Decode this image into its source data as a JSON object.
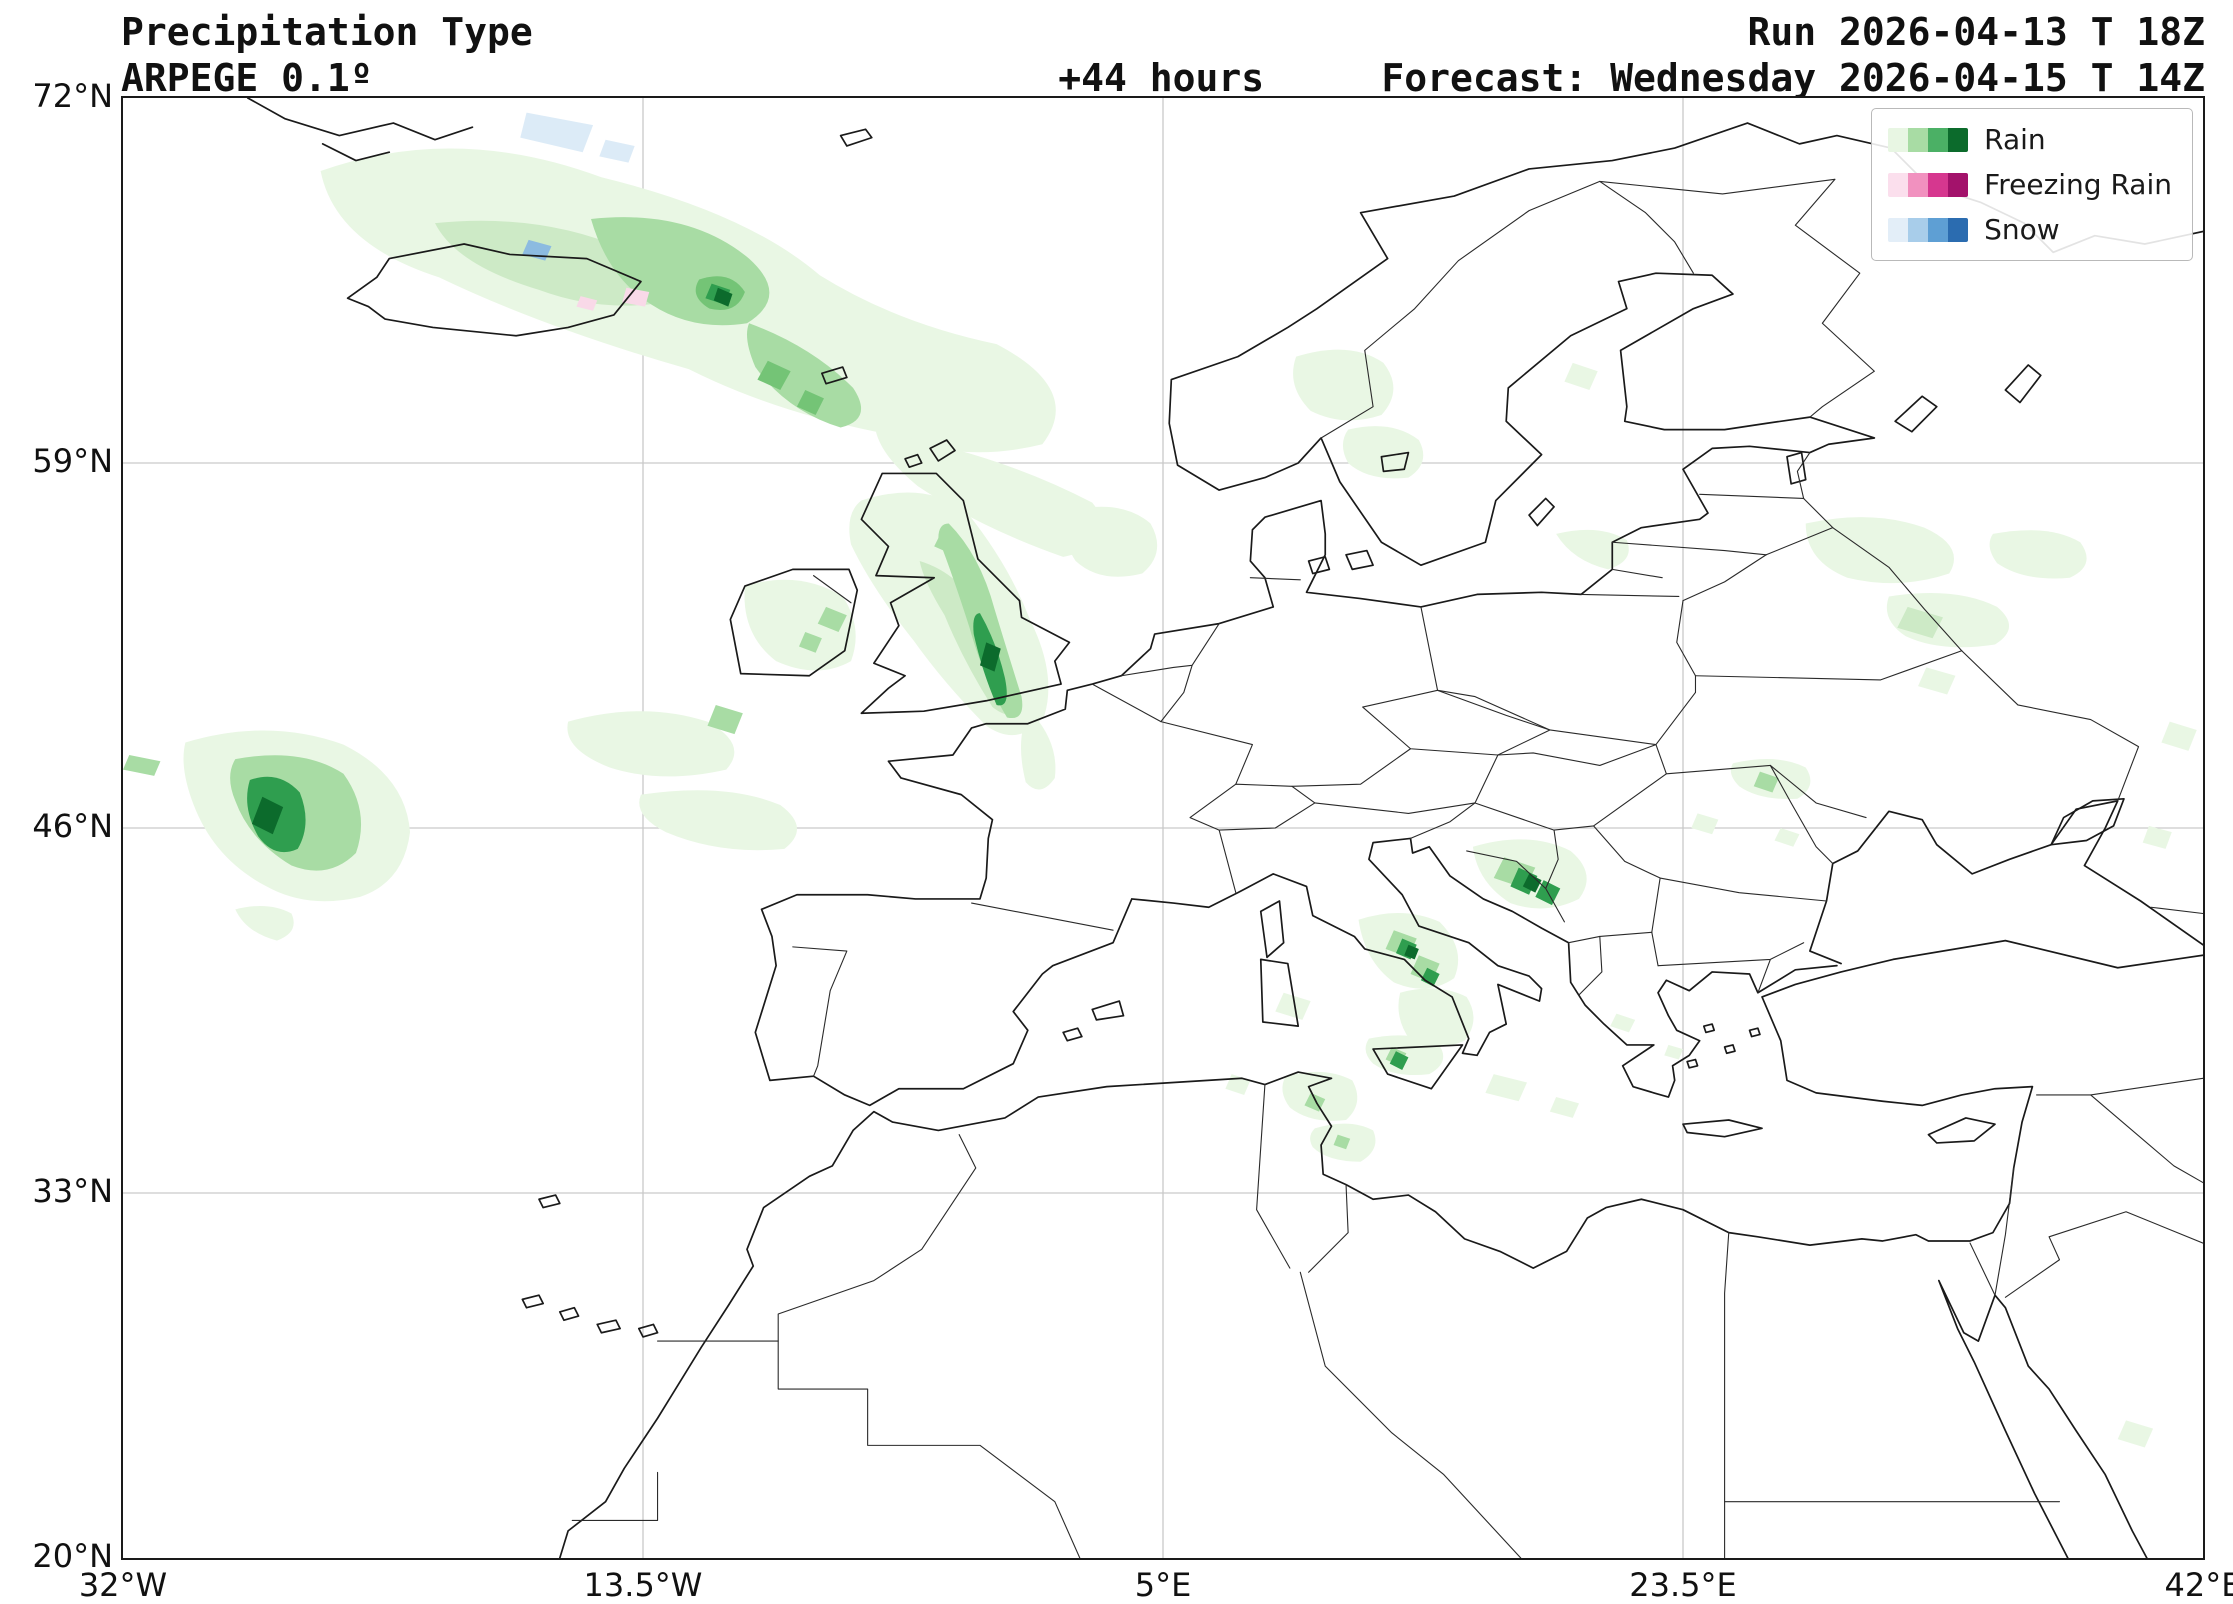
{
  "header": {
    "title": "Precipitation Type",
    "model": "ARPEGE 0.1º",
    "lead_time": "+44 hours",
    "run_label": "Run 2026-04-13 T 18Z",
    "forecast_label": "Forecast: Wednesday 2026-04-15 T 14Z"
  },
  "map": {
    "lat_ticks": [
      "72°N",
      "59°N",
      "46°N",
      "33°N",
      "20°N"
    ],
    "lon_ticks": [
      "32°W",
      "13.5°W",
      "5°E",
      "23.5°E",
      "42°E"
    ]
  },
  "legend": {
    "items": [
      {
        "label": "Rain",
        "colors": [
          "#e8f6e3",
          "#a8dca4",
          "#4bb065",
          "#0c6b2c"
        ]
      },
      {
        "label": "Freezing Rain",
        "colors": [
          "#fbdfed",
          "#f191bf",
          "#d6378f",
          "#a3126b"
        ]
      },
      {
        "label": "Snow",
        "colors": [
          "#e3eef8",
          "#a8cdea",
          "#5e9fd4",
          "#2b6cb0"
        ]
      }
    ]
  },
  "precip_shades": {
    "rain": [
      "#e9f7e4",
      "#cdeac6",
      "#a8dca4",
      "#74c476",
      "#2f9e4f",
      "#0c6b2c"
    ],
    "frz": [
      "#f9d9e8",
      "#ef87b8"
    ],
    "snow": [
      "#dcebf7",
      "#8cbbe0"
    ]
  }
}
